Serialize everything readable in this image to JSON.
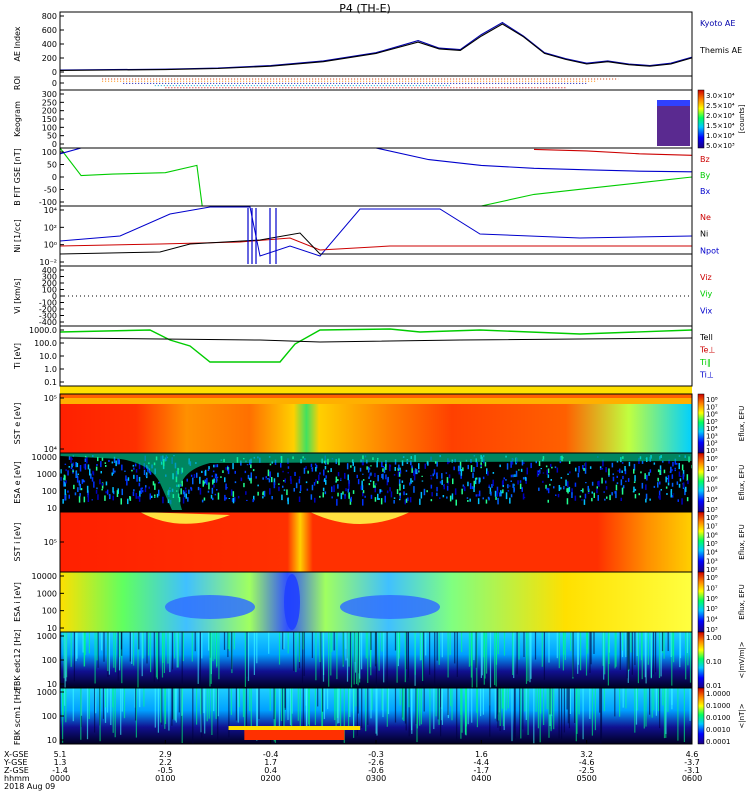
{
  "title": "P4 (TH-E)",
  "chart_data": [
    {
      "type": "line",
      "panel": "ae",
      "ylabel": "AE Index",
      "yticks": [
        "800",
        "600",
        "400",
        "200",
        "0"
      ],
      "ylim": [
        -50,
        800
      ],
      "x": [
        0.0,
        0.5,
        1.0,
        1.5,
        2.0,
        2.5,
        3.0,
        3.4,
        3.6,
        3.8,
        4.0,
        4.2,
        4.4,
        4.6,
        4.8,
        5.0,
        5.2,
        5.4,
        5.6,
        5.8,
        6.0
      ],
      "series": [
        {
          "name": "Kyoto AE",
          "color": "#0000aa",
          "values": [
            30,
            35,
            40,
            55,
            90,
            150,
            260,
            420,
            320,
            300,
            500,
            660,
            480,
            260,
            180,
            120,
            150,
            110,
            90,
            120,
            200
          ]
        },
        {
          "name": "Themis AE",
          "color": "#000000",
          "values": [
            25,
            30,
            35,
            50,
            80,
            140,
            250,
            400,
            310,
            290,
            480,
            640,
            470,
            250,
            170,
            110,
            140,
            100,
            80,
            110,
            190
          ]
        }
      ]
    },
    {
      "type": "heatmap",
      "panel": "roi",
      "ylabel": "ROI",
      "yticks": [
        "0"
      ]
    },
    {
      "type": "heatmap",
      "panel": "keogram",
      "ylabel": "Keogram",
      "yticks": [
        "300",
        "250",
        "200",
        "150",
        "100",
        "50",
        "0"
      ],
      "colorbar_ticks": [
        "3.0×10⁴",
        "2.5×10⁴",
        "2.0×10⁴",
        "1.5×10⁴",
        "1.0×10⁴",
        "5.0×10³"
      ],
      "colorbar_label": "[counts]"
    },
    {
      "type": "line",
      "panel": "bfield",
      "ylabel": "B FIT GSE [nT]",
      "yticks": [
        "100",
        "50",
        "0",
        "-50",
        "-100"
      ],
      "ylim": [
        -100,
        100
      ],
      "x": [
        0.0,
        0.2,
        0.5,
        1.0,
        1.3,
        1.35,
        1.5,
        2.0,
        2.5,
        3.0,
        3.5,
        4.0,
        4.5,
        5.0,
        5.5,
        6.0
      ],
      "series": [
        {
          "name": "Bz",
          "color": "#cc0000",
          "values": [
            null,
            null,
            null,
            null,
            null,
            null,
            null,
            null,
            null,
            null,
            null,
            null,
            95,
            90,
            80,
            75
          ]
        },
        {
          "name": "By",
          "color": "#00cc00",
          "values": [
            100,
            5,
            10,
            15,
            40,
            -100,
            null,
            null,
            null,
            null,
            null,
            -100,
            -60,
            -40,
            -20,
            0
          ]
        },
        {
          "name": "Bx",
          "color": "#0000cc",
          "values": [
            80,
            100,
            null,
            null,
            null,
            null,
            null,
            null,
            null,
            100,
            60,
            40,
            30,
            25,
            20,
            18
          ]
        }
      ]
    },
    {
      "type": "line",
      "panel": "density",
      "ylabel": "Ni [1/cc]",
      "yticks": [
        "10⁴",
        "10²",
        "10⁰",
        "10⁻²"
      ],
      "series": [
        {
          "name": "Ne",
          "color": "#cc0000"
        },
        {
          "name": "Ni",
          "color": "#000000"
        },
        {
          "name": "Npot",
          "color": "#0000cc"
        }
      ]
    },
    {
      "type": "line",
      "panel": "velocity",
      "ylabel": "Vi [km/s]",
      "yticks": [
        "400",
        "300",
        "200",
        "100",
        "0",
        "-100",
        "-200",
        "-300",
        "-400"
      ],
      "ylim": [
        -400,
        400
      ],
      "series": [
        {
          "name": "Viz",
          "color": "#cc0000"
        },
        {
          "name": "Viy",
          "color": "#00cc00"
        },
        {
          "name": "Vix",
          "color": "#0000cc"
        }
      ]
    },
    {
      "type": "line",
      "panel": "temperature",
      "ylabel": "Ti [eV]",
      "yticks": [
        "1000.0",
        "100.0",
        "10.0",
        "1.0",
        "0.1"
      ],
      "series": [
        {
          "name": "Tell",
          "color": "#000000"
        },
        {
          "name": "Te⊥",
          "color": "#cc0000"
        },
        {
          "name": "Ti∥",
          "color": "#00cc00"
        },
        {
          "name": "Ti⊥",
          "color": "#0000cc"
        }
      ]
    },
    {
      "type": "heatmap",
      "panel": "sst_e",
      "ylabel": "SST e [eV]",
      "yticks": [
        "10⁵",
        "10⁴"
      ],
      "colorbar_ticks": [
        "10⁸",
        "10⁷",
        "10⁶",
        "10⁵",
        "10⁴",
        "10³",
        "10²",
        "10¹"
      ],
      "colorbar_label": "Eflux, EFU"
    },
    {
      "type": "heatmap",
      "panel": "esa_e",
      "ylabel": "ESA e [eV]",
      "yticks": [
        "10000",
        "1000",
        "100",
        "10"
      ],
      "colorbar_ticks": [
        "10⁸",
        "10⁷",
        "10⁶",
        "10⁵",
        "10⁴",
        "10³"
      ],
      "colorbar_label": "Eflux, EFU"
    },
    {
      "type": "heatmap",
      "panel": "sst_i",
      "ylabel": "SST i [eV]",
      "yticks": [
        "10⁵"
      ],
      "colorbar_ticks": [
        "10⁸",
        "10⁷",
        "10⁶",
        "10⁵",
        "10⁴",
        "10³",
        "10²"
      ],
      "colorbar_label": "Eflux, EFU"
    },
    {
      "type": "heatmap",
      "panel": "esa_i",
      "ylabel": "ESA i [eV]",
      "yticks": [
        "10000",
        "1000",
        "100",
        "10"
      ],
      "colorbar_ticks": [
        "10⁸",
        "10⁷",
        "10⁶",
        "10⁵",
        "10⁴",
        "10³"
      ],
      "colorbar_label": "Eflux, EFU"
    },
    {
      "type": "heatmap",
      "panel": "fbk_edc",
      "ylabel": "FBK edc12 [Hz]",
      "yticks": [
        "1000",
        "100",
        "10"
      ],
      "colorbar_ticks": [
        "1.00",
        "0.10",
        "0.01"
      ],
      "colorbar_label": "<|mV/m|>"
    },
    {
      "type": "heatmap",
      "panel": "fbk_scm",
      "ylabel": "FBK scm1 [Hz]",
      "yticks": [
        "1000",
        "100",
        "10"
      ],
      "colorbar_ticks": [
        "1.0000",
        "0.1000",
        "0.0100",
        "0.0010",
        "0.0001"
      ],
      "colorbar_label": "<|nT|>"
    }
  ],
  "xaxis": {
    "row_labels": [
      "X-GSE",
      "Y-GSE",
      "Z-GSE",
      "hhmm",
      "2018 Aug 09"
    ],
    "ticks": [
      {
        "x": 0,
        "vals": [
          "5.1",
          "1.3",
          "-1.4",
          "0000"
        ]
      },
      {
        "x": 1,
        "vals": [
          "2.9",
          "2.2",
          "-0.5",
          "0100"
        ]
      },
      {
        "x": 2,
        "vals": [
          "-0.4",
          "1.7",
          "0.4",
          "0200"
        ]
      },
      {
        "x": 3,
        "vals": [
          "-0.3",
          "-2.6",
          "-0.6",
          "0300"
        ]
      },
      {
        "x": 4,
        "vals": [
          "1.6",
          "-4.4",
          "-1.7",
          "0400"
        ]
      },
      {
        "x": 5,
        "vals": [
          "3.2",
          "-4.6",
          "-2.5",
          "0500"
        ]
      },
      {
        "x": 6,
        "vals": [
          "4.6",
          "-3.7",
          "-3.1",
          "0600"
        ]
      }
    ]
  }
}
